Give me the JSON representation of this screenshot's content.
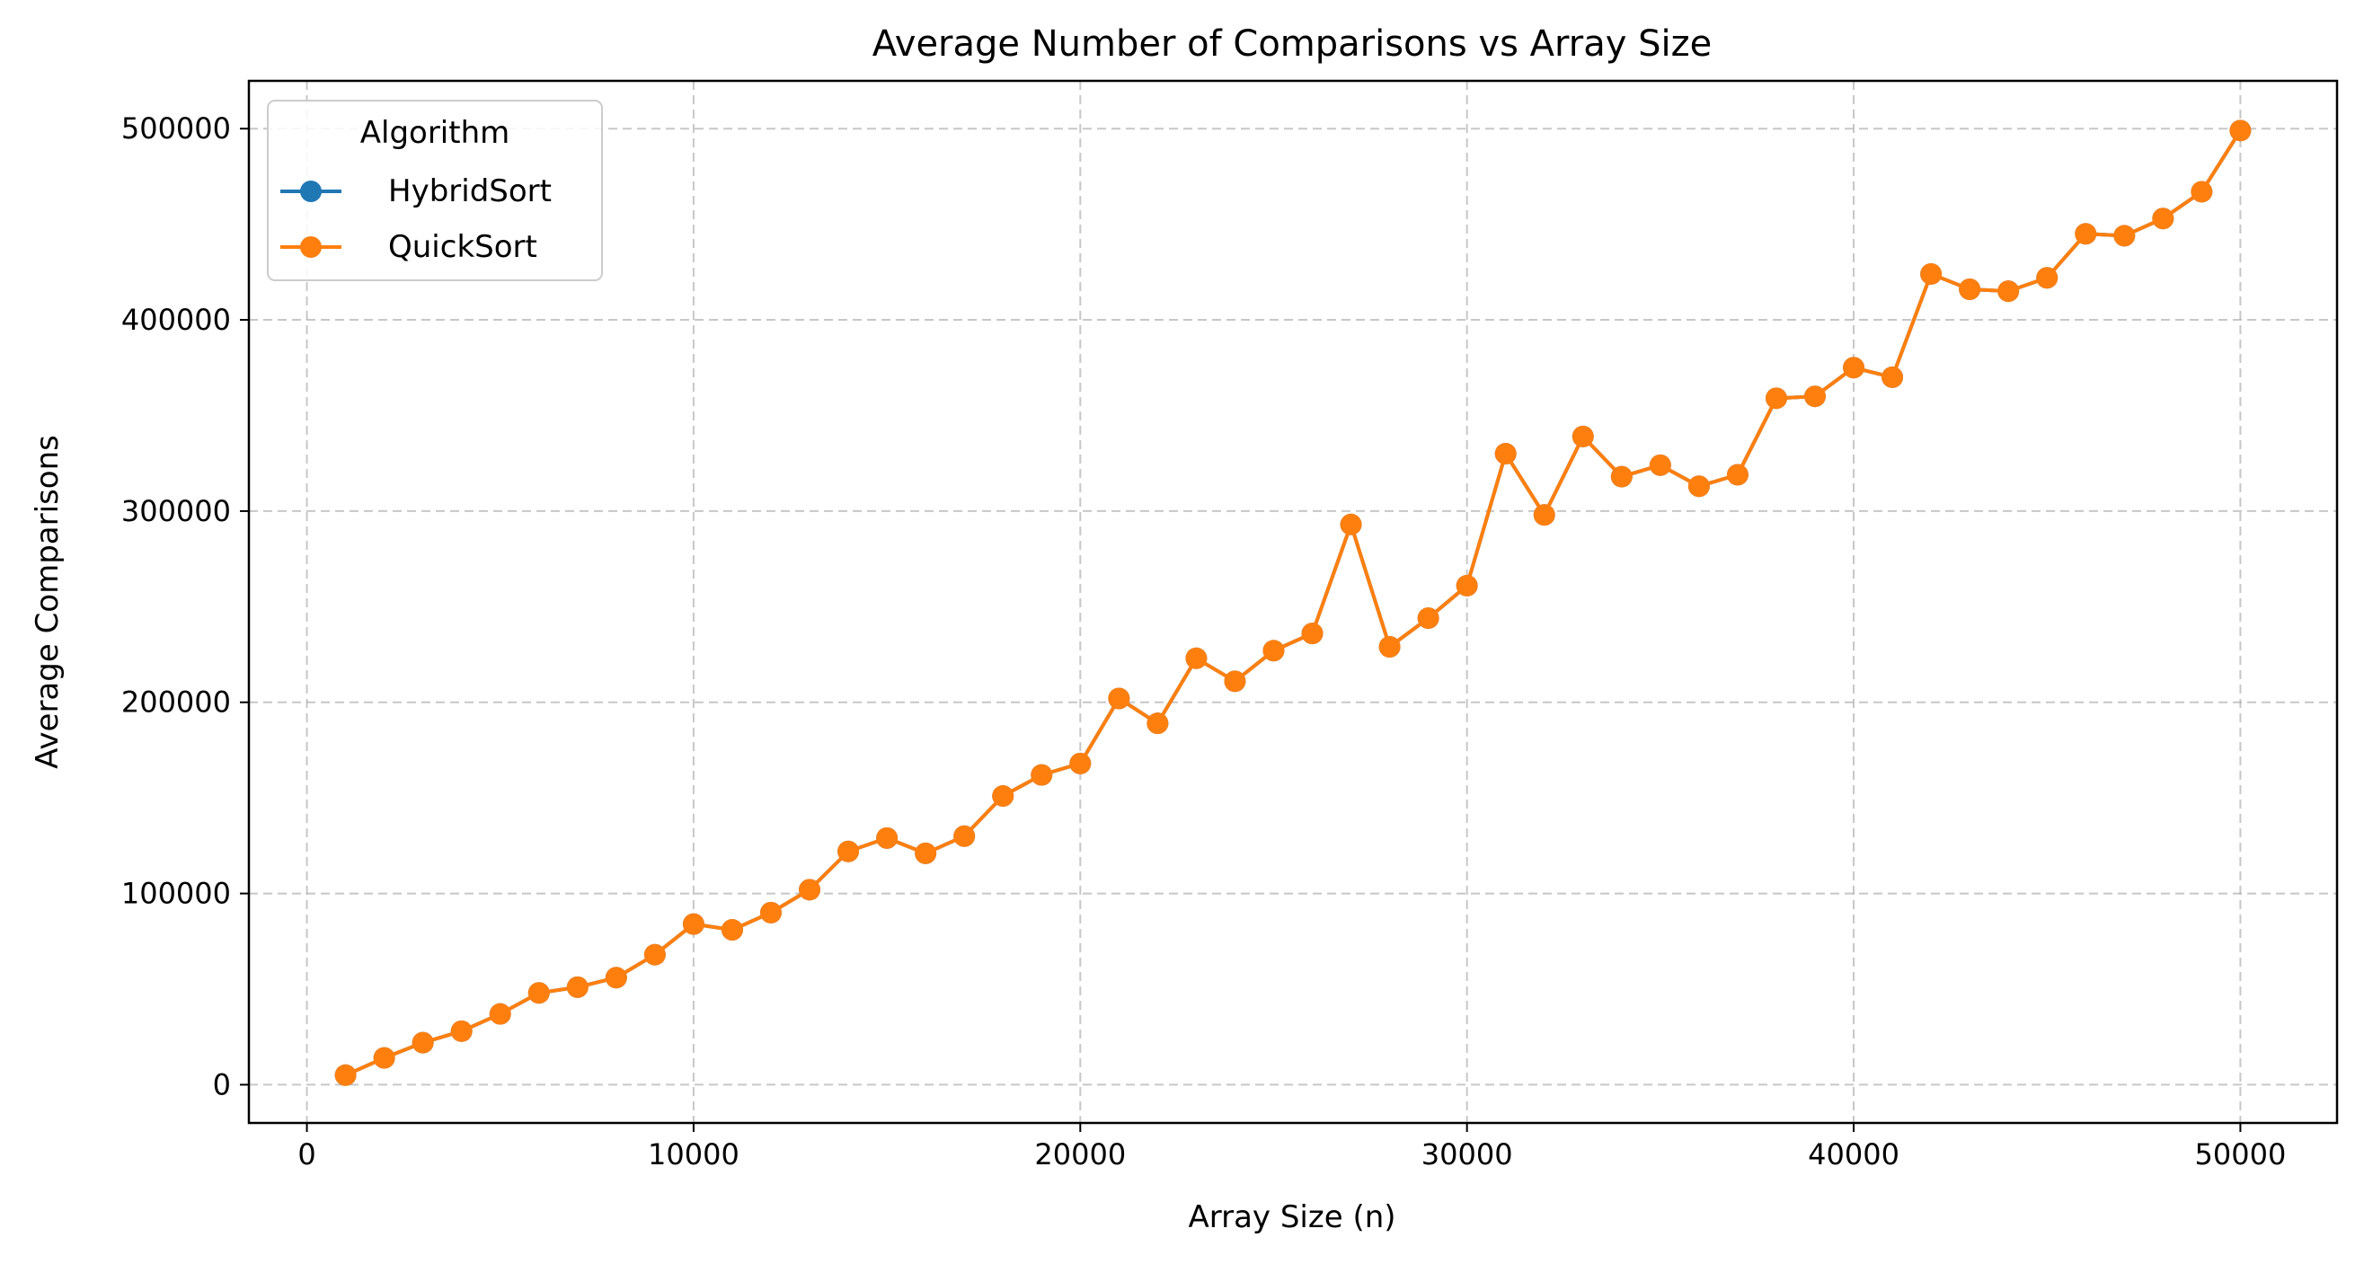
{
  "chart_data": {
    "type": "line",
    "title": "Average Number of Comparisons vs Array Size",
    "xlabel": "Array Size (n)",
    "ylabel": "Average Comparisons",
    "xlim": [
      -1500,
      52500
    ],
    "ylim": [
      -20000,
      525000
    ],
    "xticks": [
      0,
      10000,
      20000,
      30000,
      40000,
      50000
    ],
    "xtick_labels": [
      "0",
      "10000",
      "20000",
      "30000",
      "40000",
      "50000"
    ],
    "yticks": [
      0,
      100000,
      200000,
      300000,
      400000,
      500000
    ],
    "ytick_labels": [
      "0",
      "100000",
      "200000",
      "300000",
      "400000",
      "500000"
    ],
    "grid": true,
    "legend": {
      "title": "Algorithm",
      "placement": "upper-left"
    },
    "x": [
      1000,
      2000,
      3000,
      4000,
      5000,
      6000,
      7000,
      8000,
      9000,
      10000,
      11000,
      12000,
      13000,
      14000,
      15000,
      16000,
      17000,
      18000,
      19000,
      20000,
      21000,
      22000,
      23000,
      24000,
      25000,
      26000,
      27000,
      28000,
      29000,
      30000,
      31000,
      32000,
      33000,
      34000,
      35000,
      36000,
      37000,
      38000,
      39000,
      40000,
      41000,
      42000,
      43000,
      44000,
      45000,
      46000,
      47000,
      48000,
      49000,
      50000
    ],
    "series": [
      {
        "name": "HybridSort",
        "color": "#1f77b4",
        "values": [
          5000,
          14000,
          22000,
          28000,
          37000,
          48000,
          51000,
          56000,
          68000,
          84000,
          81000,
          90000,
          102000,
          122000,
          129000,
          121000,
          130000,
          151000,
          162000,
          168000,
          202000,
          189000,
          223000,
          211000,
          227000,
          236000,
          293000,
          229000,
          244000,
          261000,
          330000,
          298000,
          339000,
          318000,
          324000,
          313000,
          319000,
          359000,
          360000,
          375000,
          370000,
          424000,
          416000,
          415000,
          422000,
          445000,
          444000,
          453000,
          467000,
          499000
        ]
      },
      {
        "name": "QuickSort",
        "color": "#ff7f0e",
        "values": [
          5000,
          14000,
          22000,
          28000,
          37000,
          48000,
          51000,
          56000,
          68000,
          84000,
          81000,
          90000,
          102000,
          122000,
          129000,
          121000,
          130000,
          151000,
          162000,
          168000,
          202000,
          189000,
          223000,
          211000,
          227000,
          236000,
          293000,
          229000,
          244000,
          261000,
          330000,
          298000,
          339000,
          318000,
          324000,
          313000,
          319000,
          359000,
          360000,
          375000,
          370000,
          424000,
          416000,
          415000,
          422000,
          445000,
          444000,
          453000,
          467000,
          499000
        ]
      }
    ]
  }
}
